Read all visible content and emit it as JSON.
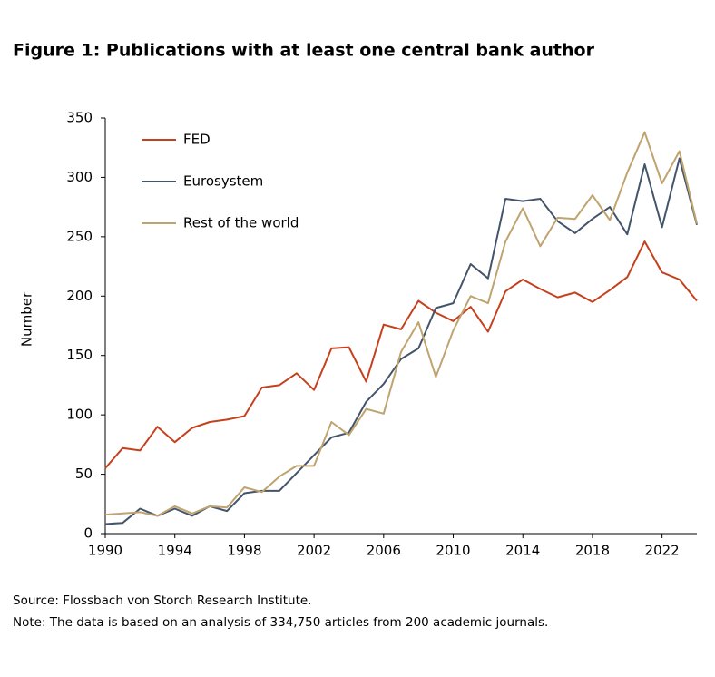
{
  "chart_data": {
    "type": "line",
    "title": "Figure 1: Publications with at least one central bank author",
    "y_label": "Number",
    "source": "Source: Flossbach von Storch Research Institute.",
    "note": "Note: The data is based on an analysis of 334,750 articles from 200 academic journals.",
    "x": [
      1990,
      1991,
      1992,
      1993,
      1994,
      1995,
      1996,
      1997,
      1998,
      1999,
      2000,
      2001,
      2002,
      2003,
      2004,
      2005,
      2006,
      2007,
      2008,
      2009,
      2010,
      2011,
      2012,
      2013,
      2014,
      2015,
      2016,
      2017,
      2018,
      2019,
      2020,
      2021,
      2022,
      2023,
      2024
    ],
    "series": [
      {
        "name": "FED",
        "color": "#c5411e",
        "values": [
          55,
          72,
          70,
          90,
          77,
          89,
          94,
          96,
          99,
          123,
          125,
          135,
          121,
          156,
          157,
          128,
          176,
          172,
          196,
          186,
          179,
          191,
          170,
          204,
          214,
          206,
          199,
          203,
          195,
          205,
          216,
          246,
          220,
          214,
          196
        ]
      },
      {
        "name": "Eurosystem",
        "color": "#44546a",
        "values": [
          8,
          9,
          21,
          15,
          21,
          15,
          23,
          19,
          34,
          36,
          36,
          51,
          66,
          81,
          85,
          111,
          126,
          147,
          156,
          190,
          194,
          227,
          215,
          282,
          280,
          282,
          263,
          253,
          265,
          275,
          252,
          311,
          258,
          316,
          260
        ]
      },
      {
        "name": "Rest of the world",
        "color": "#bfa46f",
        "values": [
          16,
          17,
          18,
          15,
          23,
          17,
          23,
          22,
          39,
          35,
          48,
          57,
          57,
          94,
          83,
          105,
          101,
          153,
          178,
          132,
          171,
          200,
          194,
          246,
          274,
          242,
          266,
          265,
          285,
          264,
          304,
          338,
          295,
          322,
          261
        ]
      }
    ],
    "xlim": [
      1990,
      2024
    ],
    "xticks": [
      1990,
      1994,
      1998,
      2002,
      2006,
      2010,
      2014,
      2018,
      2022
    ],
    "ylim": [
      0,
      350
    ],
    "yticks": [
      0,
      50,
      100,
      150,
      200,
      250,
      300,
      350
    ],
    "legend": "top-left"
  }
}
